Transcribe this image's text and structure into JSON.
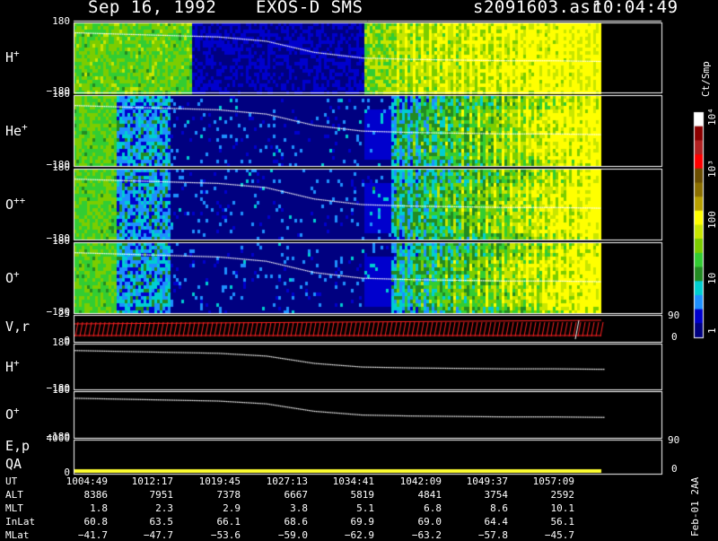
{
  "header": {
    "date": "Sep 16, 1992",
    "instrument": "EXOS-D SMS",
    "file": "s2091603.asr",
    "time": "10:04:49"
  },
  "colorbar": {
    "unit_label": "Ct/Smp",
    "ticks": [
      "10⁴",
      "10³",
      "100",
      "10",
      "1"
    ],
    "colors": [
      "#ffffff",
      "#8b0000",
      "#b22222",
      "#ff0000",
      "#6b4e00",
      "#8b6f00",
      "#b8a000",
      "#ffff00",
      "#c8e600",
      "#7ccd00",
      "#32cd32",
      "#228b22",
      "#00ced1",
      "#1e90ff",
      "#0000cd",
      "#000080"
    ]
  },
  "footer_note": "Feb-01 2AA",
  "chart_data": {
    "type": "heatmap",
    "time_ticks": [
      "1004:49",
      "1012:17",
      "1019:45",
      "1027:13",
      "1034:41",
      "1042:09",
      "1049:37",
      "1057:09"
    ],
    "panels": [
      {
        "label": "H",
        "sup": "+",
        "y_top": "180",
        "y_bottom": "−180",
        "kind": "spectrogram",
        "pitch_curve": [
          0.14,
          0.16,
          0.18,
          0.2,
          0.26,
          0.42,
          0.5,
          0.52,
          0.53,
          0.54,
          0.54,
          0.55
        ]
      },
      {
        "label": "He",
        "sup": "+",
        "y_top": "180",
        "y_bottom": "−180",
        "kind": "spectrogram",
        "pitch_curve": [
          0.14,
          0.16,
          0.18,
          0.2,
          0.26,
          0.42,
          0.5,
          0.52,
          0.53,
          0.54,
          0.54,
          0.55
        ]
      },
      {
        "label": "O",
        "sup": "++",
        "y_top": "180",
        "y_bottom": "−180",
        "kind": "spectrogram",
        "pitch_curve": [
          0.14,
          0.16,
          0.18,
          0.2,
          0.26,
          0.42,
          0.5,
          0.52,
          0.53,
          0.54,
          0.54,
          0.55
        ]
      },
      {
        "label": "O",
        "sup": "+",
        "y_top": "180",
        "y_bottom": "−180",
        "kind": "spectrogram",
        "pitch_curve": [
          0.14,
          0.16,
          0.18,
          0.2,
          0.26,
          0.42,
          0.5,
          0.52,
          0.53,
          0.54,
          0.54,
          0.55
        ]
      },
      {
        "label": "V,r",
        "sup": "",
        "y_top": "25",
        "y_bottom": "0",
        "right_top": "90",
        "right_bottom": "0",
        "kind": "vector"
      },
      {
        "label": "H",
        "sup": "+",
        "y_top": "180",
        "y_bottom": "−180",
        "kind": "line",
        "pitch_curve": [
          0.14,
          0.16,
          0.18,
          0.2,
          0.26,
          0.42,
          0.5,
          0.52,
          0.53,
          0.54,
          0.54,
          0.55
        ]
      },
      {
        "label": "O",
        "sup": "+",
        "y_top": "180",
        "y_bottom": "−180",
        "kind": "line",
        "pitch_curve": [
          0.14,
          0.16,
          0.18,
          0.2,
          0.26,
          0.42,
          0.5,
          0.52,
          0.53,
          0.54,
          0.54,
          0.55
        ]
      },
      {
        "label": "E,p",
        "sup": "",
        "label2": "QA",
        "y_top": "4000",
        "y_bottom": "0",
        "right_top": "90",
        "right_bottom": "0",
        "kind": "qa"
      }
    ],
    "table": {
      "rows": [
        {
          "name": "UT",
          "values": [
            "1004:49",
            "1012:17",
            "1019:45",
            "1027:13",
            "1034:41",
            "1042:09",
            "1049:37",
            "1057:09"
          ]
        },
        {
          "name": "ALT",
          "values": [
            "8386",
            "7951",
            "7378",
            "6667",
            "5819",
            "4841",
            "3754",
            "2592"
          ]
        },
        {
          "name": "MLT",
          "values": [
            "1.8",
            "2.3",
            "2.9",
            "3.8",
            "5.1",
            "6.8",
            "8.6",
            "10.1"
          ]
        },
        {
          "name": "InLat",
          "values": [
            "60.8",
            "63.5",
            "66.1",
            "68.6",
            "69.9",
            "69.0",
            "64.4",
            "56.1"
          ]
        },
        {
          "name": "MLat",
          "values": [
            "−41.7",
            "−47.7",
            "−53.6",
            "−59.0",
            "−62.9",
            "−63.2",
            "−57.8",
            "−45.7"
          ]
        }
      ]
    }
  }
}
